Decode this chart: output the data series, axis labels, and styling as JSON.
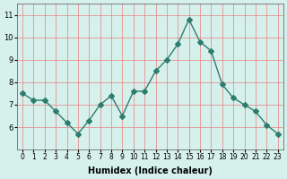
{
  "x": [
    0,
    1,
    2,
    3,
    4,
    5,
    6,
    7,
    8,
    9,
    10,
    11,
    12,
    13,
    14,
    15,
    16,
    17,
    18,
    19,
    20,
    21,
    22,
    23
  ],
  "y": [
    7.5,
    7.2,
    7.2,
    6.7,
    6.2,
    5.7,
    6.3,
    7.0,
    7.4,
    6.5,
    7.6,
    7.6,
    8.5,
    9.0,
    9.7,
    10.8,
    9.8,
    9.4,
    7.9,
    7.3,
    7.0,
    6.7,
    6.1,
    5.7
  ],
  "xlabel": "Humidex (Indice chaleur)",
  "ylim": [
    5.0,
    11.5
  ],
  "xlim": [
    -0.5,
    23.5
  ],
  "yticks": [
    6,
    7,
    8,
    9,
    10,
    11
  ],
  "xtick_labels": [
    "0",
    "1",
    "2",
    "3",
    "4",
    "5",
    "6",
    "7",
    "8",
    "9",
    "10",
    "11",
    "12",
    "13",
    "14",
    "15",
    "16",
    "17",
    "18",
    "19",
    "20",
    "21",
    "22",
    "23"
  ],
  "line_color": "#2d7d6e",
  "marker": "D",
  "marker_size": 3,
  "bg_color": "#d6f0ec",
  "grid_color": "#f0a0a0",
  "grid_color_v": "#f0a0a0"
}
